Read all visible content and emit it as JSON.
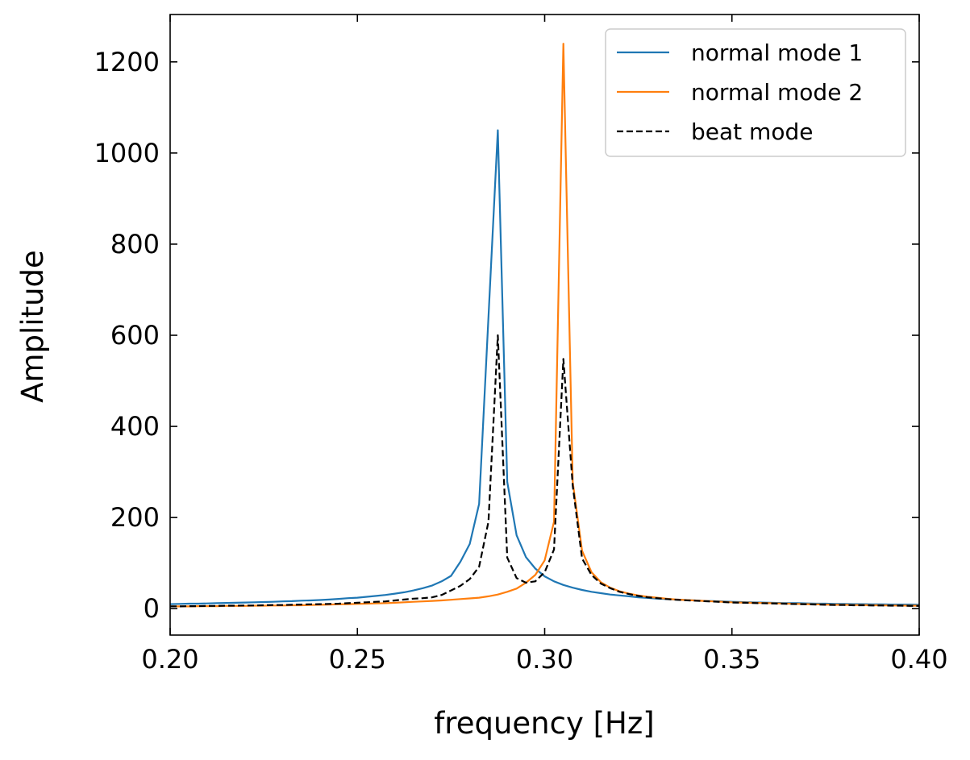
{
  "chart_data": {
    "type": "line",
    "title": "",
    "xlabel": "frequency [Hz]",
    "ylabel": "Amplitude",
    "xlim": [
      0.2,
      0.4
    ],
    "ylim": [
      -58,
      1304
    ],
    "grid": false,
    "legend_position": "top-right",
    "x_ticks": [
      "0.20",
      "0.25",
      "0.30",
      "0.35",
      "0.40"
    ],
    "x_tick_values": [
      0.2,
      0.25,
      0.3,
      0.35,
      0.4
    ],
    "y_ticks": [
      "0",
      "200",
      "400",
      "600",
      "800",
      "1000",
      "1200"
    ],
    "y_tick_values": [
      0,
      200,
      400,
      600,
      800,
      1000,
      1200
    ],
    "x_start": 0.2,
    "x_step": 0.0025,
    "series": [
      {
        "name": "normal mode 1",
        "color": "#1f77b4",
        "style": "solid",
        "values": [
          10,
          10.5,
          11,
          11,
          11.5,
          12,
          12.5,
          13,
          13.5,
          14,
          14.5,
          15,
          16,
          16.5,
          17.5,
          18,
          19,
          20,
          21.5,
          23,
          24,
          26,
          28,
          30,
          33,
          36,
          40,
          45,
          51,
          60,
          72,
          103,
          142,
          230,
          640,
          1050,
          278,
          161,
          113,
          88,
          71,
          60,
          52,
          46,
          41,
          37,
          34,
          31,
          29,
          27,
          25,
          23.5,
          22,
          21,
          20,
          19,
          18,
          17,
          16.5,
          16,
          15,
          14.5,
          14,
          13.5,
          13,
          12.5,
          12,
          12,
          11.5,
          11,
          11,
          10.5,
          10.5,
          10,
          10,
          9.5,
          9.5,
          9,
          9,
          9,
          8.5
        ]
      },
      {
        "name": "normal mode 2",
        "color": "#ff7f0e",
        "style": "solid",
        "values": [
          5,
          5,
          5,
          5.5,
          5.5,
          5.5,
          6,
          6,
          6,
          6.5,
          6.5,
          7,
          7,
          7.5,
          7.5,
          8,
          8.5,
          9,
          9.5,
          10,
          10.5,
          11,
          11.5,
          12,
          13,
          14,
          15,
          16,
          17,
          18,
          19.5,
          21,
          22.5,
          24,
          27,
          31,
          37,
          44,
          57,
          74,
          106,
          191,
          1240,
          278,
          127,
          80,
          58,
          46,
          38,
          33,
          29,
          26,
          24,
          22,
          20,
          19,
          18,
          17,
          16,
          15,
          14,
          13.5,
          13,
          12.5,
          12,
          11.5,
          11,
          10.5,
          10,
          9.5,
          9,
          8.5,
          8.5,
          8,
          8,
          7.5,
          7.5,
          7,
          7,
          6.5,
          6.5
        ]
      },
      {
        "name": "beat mode",
        "color": "#000000",
        "style": "dashed",
        "values": [
          5,
          5,
          5.5,
          5.5,
          6,
          6,
          6.5,
          6.5,
          7,
          7,
          7.5,
          8,
          8,
          8.5,
          9,
          9.5,
          10,
          10.5,
          11,
          12,
          13,
          14,
          15,
          16,
          18,
          20,
          22,
          23,
          25,
          30,
          40,
          50,
          65,
          92,
          191,
          600,
          112,
          67,
          57,
          60,
          80,
          130,
          548,
          270,
          110,
          74,
          55,
          45,
          37,
          32,
          28,
          25,
          23,
          21,
          19.5,
          18.5,
          17.5,
          16.5,
          15.5,
          14.5,
          13.5,
          13,
          12.5,
          12,
          11.5,
          11,
          10.5,
          10,
          9.5,
          9,
          8.5,
          8,
          8,
          7.5,
          7.5,
          7,
          7,
          6.5,
          6.5,
          6,
          6
        ]
      }
    ]
  }
}
